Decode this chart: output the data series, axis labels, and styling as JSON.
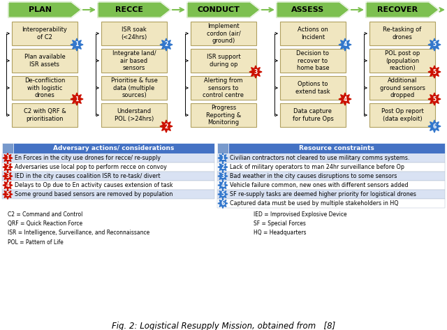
{
  "title": "Fig. 2: Logistical Resupply Mission, obtained from   [8]",
  "phases": [
    "PLAN",
    "RECCE",
    "CONDUCT",
    "ASSESS",
    "RECOVER"
  ],
  "phase_color": "#7dc050",
  "box_color": "#f0e6c0",
  "box_border_color": "#b0a060",
  "plan_boxes": [
    "Interoperability\nof C2",
    "Plan available\nISR assets",
    "De-confliction\nwith logistic\ndrones",
    "C2 with QRF &\nprioritisation"
  ],
  "plan_badges": [
    1,
    0,
    1,
    0
  ],
  "plan_badge_types": [
    "blue",
    "",
    "red",
    ""
  ],
  "recce_boxes": [
    "ISR soak\n(<24hrs)",
    "Integrate land/\nair based\nsensors",
    "Prioritise & fuse\ndata (multiple\nsources)",
    "Understand\nPOL (>24hrs)"
  ],
  "recce_badges": [
    2,
    0,
    0,
    2
  ],
  "recce_badge_types": [
    "blue",
    "",
    "",
    "red"
  ],
  "conduct_boxes": [
    "Implement\ncordon (air/\nground)",
    "ISR support\nduring op",
    "Alerting from\nsensors to\ncontrol centre",
    "Progress\nReporting &\nMonitoring"
  ],
  "conduct_badges": [
    0,
    3,
    0,
    0
  ],
  "conduct_badge_types": [
    "",
    "red",
    "",
    ""
  ],
  "assess_boxes": [
    "Actions on\nIncident",
    "Decision to\nrecover to\nhome base",
    "Options to\nextend task",
    "Data capture\nfor future Ops"
  ],
  "assess_badges": [
    4,
    0,
    4,
    0
  ],
  "assess_badge_types": [
    "blue",
    "",
    "red",
    ""
  ],
  "recover_boxes": [
    "Re-tasking of\ndrones",
    "POL post op\n(population\nreaction)",
    "Additional\nground sensors\ndropped",
    "Post Op report\n(data exploit)"
  ],
  "recover_badges": [
    5,
    5,
    5,
    6
  ],
  "recover_badge_types": [
    "blue",
    "red",
    "red",
    "blue"
  ],
  "table_header_color": "#4472c4",
  "table_row_alt_color": "#d9e2f3",
  "adversary_header": "Adversary actions/ considerations",
  "resource_header": "Resource constraints",
  "adversary_rows": [
    "En Forces in the city use drones for recce/ re-supply",
    "Adversaries use local pop to perform recce on convoy",
    "IED in the city causes coalition ISR to re-task/ divert",
    "Delays to Op due to En activity causes extension of task",
    "Some ground based sensors are removed by population"
  ],
  "resource_rows": [
    "Civilian contractors not cleared to use military comms systems.",
    "Lack of military operators to man 24hr surveillance before Op",
    "Bad weather in the city causes disruptions to some sensors",
    "Vehicle failure common, new ones with different sensors added",
    "SF re-supply tasks are deemed higher priority for logistical drones",
    "Captured data must be used by multiple stakeholders in HQ"
  ],
  "abbrev_left": "C2 = Command and Control\nQRF = Quick Reaction Force\nISR = Intelligence, Surveillance, and Reconnaissance\nPOL = Pattern of Life",
  "abbrev_right": "IED = Improvised Explosive Device\nSF = Special Forces\nHQ = Headquarters",
  "background_color": "white"
}
